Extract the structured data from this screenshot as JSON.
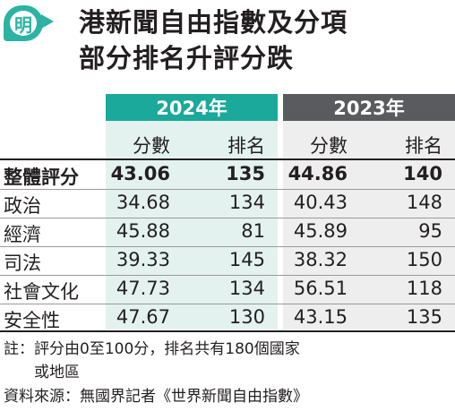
{
  "logo_char": "明",
  "title_line1": "港新聞自由指數及分項",
  "title_line2": "部分排名升評分跌",
  "year_2024": "2024年",
  "year_2023": "2023年",
  "sub_score": "分數",
  "sub_rank": "排名",
  "rows": [
    {
      "label": "整體評分",
      "s24": "43.06",
      "r24": "135",
      "s23": "44.86",
      "r23": "140"
    },
    {
      "label": "政治",
      "s24": "34.68",
      "r24": "134",
      "s23": "40.43",
      "r23": "148"
    },
    {
      "label": "經濟",
      "s24": "45.88",
      "r24": "81",
      "s23": "45.89",
      "r23": "95"
    },
    {
      "label": "司法",
      "s24": "39.33",
      "r24": "145",
      "s23": "38.32",
      "r23": "150"
    },
    {
      "label": "社會文化",
      "s24": "47.73",
      "r24": "134",
      "s23": "56.51",
      "r23": "118"
    },
    {
      "label": "安全性",
      "s24": "47.67",
      "r24": "130",
      "s23": "43.15",
      "r23": "135"
    }
  ],
  "note_line1": "註：評分由0至100分，排名共有180個國家",
  "note_line2": "或地區",
  "source": "資料來源：無國界記者《世界新聞自由指數》",
  "colors": {
    "accent_2024": "#1aa99a",
    "accent_2023": "#5a5b5e",
    "shade_2024": "#e3f2ef",
    "shade_2023": "#eeeeee"
  }
}
